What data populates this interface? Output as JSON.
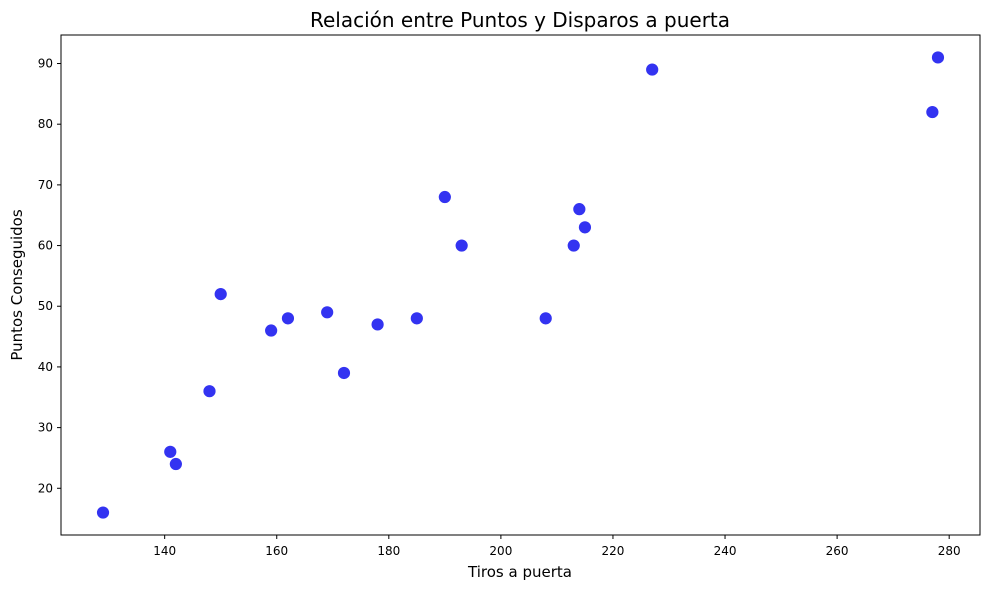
{
  "chart_data": {
    "type": "scatter",
    "title": "Relación entre Puntos y Disparos a puerta",
    "xlabel": "Tiros a puerta",
    "ylabel": "Puntos Conseguidos",
    "xlim": [
      121.5,
      285.5
    ],
    "ylim": [
      12.3,
      94.7
    ],
    "xticks": [
      140,
      160,
      180,
      200,
      220,
      240,
      260,
      280
    ],
    "yticks": [
      20,
      30,
      40,
      50,
      60,
      70,
      80,
      90
    ],
    "grid": false,
    "point_color": "#0000ee",
    "points": [
      {
        "x": 129,
        "y": 16
      },
      {
        "x": 141,
        "y": 26
      },
      {
        "x": 142,
        "y": 24
      },
      {
        "x": 148,
        "y": 36
      },
      {
        "x": 150,
        "y": 52
      },
      {
        "x": 159,
        "y": 46
      },
      {
        "x": 162,
        "y": 48
      },
      {
        "x": 169,
        "y": 49
      },
      {
        "x": 172,
        "y": 39
      },
      {
        "x": 178,
        "y": 47
      },
      {
        "x": 185,
        "y": 48
      },
      {
        "x": 190,
        "y": 68
      },
      {
        "x": 193,
        "y": 60
      },
      {
        "x": 208,
        "y": 48
      },
      {
        "x": 213,
        "y": 60
      },
      {
        "x": 214,
        "y": 66
      },
      {
        "x": 215,
        "y": 63
      },
      {
        "x": 227,
        "y": 89
      },
      {
        "x": 277,
        "y": 82
      },
      {
        "x": 278,
        "y": 91
      }
    ]
  }
}
